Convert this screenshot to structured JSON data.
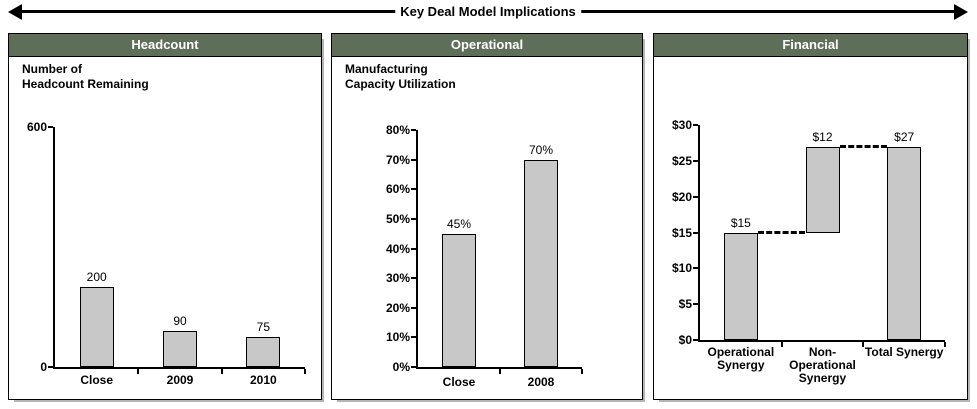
{
  "title_banner": {
    "text": "Key Deal Model Implications"
  },
  "colors": {
    "header_bg": "#5e6e58",
    "header_text": "#ffffff",
    "bar_fill": "#c8c8c8",
    "bar_border": "#000000",
    "panel_border": "#000000",
    "arrow": "#000000"
  },
  "panels": [
    {
      "header": "Headcount",
      "subtitle": "Number of\nHeadcount Remaining"
    },
    {
      "header": "Operational",
      "subtitle": "Manufacturing\nCapacity Utilization"
    },
    {
      "header": "Financial",
      "subtitle": ""
    }
  ],
  "chart_data": [
    {
      "type": "bar",
      "panel": "Headcount",
      "title": "Number of Headcount Remaining",
      "categories": [
        "Close",
        "2009",
        "2010"
      ],
      "values": [
        200,
        90,
        75
      ],
      "data_labels": [
        "200",
        "90",
        "75"
      ],
      "ylim": [
        0,
        600
      ],
      "ytick_values": [
        0,
        600
      ],
      "ytick_labels": [
        "0",
        "600"
      ],
      "grid": false,
      "legend": false
    },
    {
      "type": "bar",
      "panel": "Operational",
      "title": "Manufacturing Capacity Utilization",
      "categories": [
        "Close",
        "2008"
      ],
      "values": [
        45,
        70
      ],
      "data_labels": [
        "45%",
        "70%"
      ],
      "ylim": [
        0,
        80
      ],
      "ytick_values": [
        0,
        10,
        20,
        30,
        40,
        50,
        60,
        70,
        80
      ],
      "ytick_labels": [
        "0%",
        "10%",
        "20%",
        "30%",
        "40%",
        "50%",
        "60%",
        "70%",
        "80%"
      ],
      "grid": false,
      "legend": false
    },
    {
      "type": "waterfall",
      "panel": "Financial",
      "title": "",
      "categories": [
        "Operational\nSynergy",
        "Non-\nOperational\nSynergy",
        "Total Synergy"
      ],
      "bars": [
        {
          "start": 0,
          "end": 15,
          "label": "$15"
        },
        {
          "start": 15,
          "end": 27,
          "label": "$12"
        },
        {
          "start": 0,
          "end": 27,
          "label": "$27"
        }
      ],
      "ylim": [
        0,
        30
      ],
      "ytick_values": [
        0,
        5,
        10,
        15,
        20,
        25,
        30
      ],
      "ytick_labels": [
        "$0",
        "$5",
        "$10",
        "$15",
        "$20",
        "$25",
        "$30"
      ],
      "connectors": [
        {
          "after_bar": 0,
          "value": 15
        },
        {
          "after_bar": 1,
          "value": 27
        }
      ],
      "grid": false,
      "legend": false
    }
  ]
}
